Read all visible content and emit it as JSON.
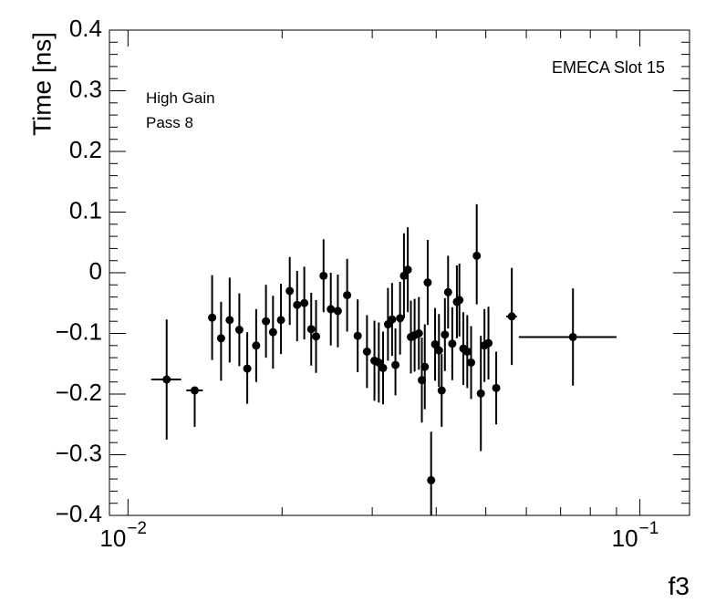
{
  "chart_data": {
    "type": "scatter",
    "title": "",
    "xlabel": "f3",
    "ylabel": "Time [ns]",
    "xscale": "log",
    "xlim": [
      0.0092,
      0.125
    ],
    "ylim": [
      -0.4,
      0.4
    ],
    "grid": false,
    "legend": "none",
    "annotations": {
      "top_right": "EMECA Slot 15",
      "line1": "High Gain",
      "line2": "Pass 8"
    },
    "yticks": [
      {
        "value": 0.4,
        "label": "0.4"
      },
      {
        "value": 0.3,
        "label": "0.3"
      },
      {
        "value": 0.2,
        "label": "0.2"
      },
      {
        "value": 0.1,
        "label": "0.1"
      },
      {
        "value": 0,
        "label": "0"
      },
      {
        "value": -0.1,
        "label": "−0.1"
      },
      {
        "value": -0.2,
        "label": "−0.2"
      },
      {
        "value": -0.3,
        "label": "−0.3"
      },
      {
        "value": -0.4,
        "label": "−0.4"
      }
    ],
    "xticks": [
      {
        "value": 0.01,
        "base": "10",
        "exp": "−2"
      },
      {
        "value": 0.1,
        "base": "10",
        "exp": "−1"
      }
    ],
    "marker_color": "#000000",
    "points": [
      {
        "x": 0.0119,
        "xlo": 0.0111,
        "xhi": 0.0127,
        "y": -0.176,
        "ylo": -0.275,
        "yhi": -0.077
      },
      {
        "x": 0.0135,
        "xlo": 0.013,
        "xhi": 0.014,
        "y": -0.194,
        "ylo": -0.254,
        "yhi": -0.194
      },
      {
        "x": 0.0146,
        "y": -0.074,
        "ylo": -0.144,
        "yhi": -0.004
      },
      {
        "x": 0.0152,
        "y": -0.108,
        "ylo": -0.178,
        "yhi": -0.048
      },
      {
        "x": 0.0158,
        "y": -0.078,
        "ylo": -0.148,
        "yhi": -0.008
      },
      {
        "x": 0.0165,
        "y": -0.094,
        "ylo": -0.154,
        "yhi": -0.034
      },
      {
        "x": 0.0171,
        "y": -0.158,
        "ylo": -0.216,
        "yhi": -0.098
      },
      {
        "x": 0.0178,
        "y": -0.12,
        "ylo": -0.18,
        "yhi": -0.06
      },
      {
        "x": 0.0186,
        "y": -0.08,
        "ylo": -0.14,
        "yhi": -0.02
      },
      {
        "x": 0.0192,
        "y": -0.098,
        "ylo": -0.158,
        "yhi": -0.038
      },
      {
        "x": 0.0199,
        "y": -0.078,
        "ylo": -0.134,
        "yhi": -0.018
      },
      {
        "x": 0.0207,
        "y": -0.03,
        "ylo": -0.086,
        "yhi": 0.026
      },
      {
        "x": 0.0214,
        "y": -0.053,
        "ylo": -0.113,
        "yhi": 0.003
      },
      {
        "x": 0.0221,
        "y": -0.05,
        "ylo": -0.11,
        "yhi": 0.01
      },
      {
        "x": 0.0228,
        "y": -0.093,
        "ylo": -0.153,
        "yhi": -0.033
      },
      {
        "x": 0.0233,
        "y": -0.105,
        "ylo": -0.165,
        "yhi": -0.045
      },
      {
        "x": 0.0241,
        "y": -0.005,
        "ylo": -0.065,
        "yhi": 0.055
      },
      {
        "x": 0.0249,
        "y": -0.06,
        "ylo": -0.12,
        "yhi": 0.0
      },
      {
        "x": 0.0257,
        "y": -0.063,
        "ylo": -0.123,
        "yhi": -0.003
      },
      {
        "x": 0.0268,
        "y": -0.037,
        "ylo": -0.097,
        "yhi": 0.023
      },
      {
        "x": 0.0281,
        "y": -0.104,
        "ylo": -0.164,
        "yhi": -0.044
      },
      {
        "x": 0.0293,
        "y": -0.13,
        "ylo": -0.19,
        "yhi": -0.07
      },
      {
        "x": 0.0303,
        "y": -0.145,
        "ylo": -0.211,
        "yhi": -0.079
      },
      {
        "x": 0.0309,
        "y": -0.148,
        "ylo": -0.214,
        "yhi": -0.082
      },
      {
        "x": 0.0315,
        "y": -0.157,
        "ylo": -0.217,
        "yhi": -0.097
      },
      {
        "x": 0.0322,
        "y": -0.085,
        "ylo": -0.145,
        "yhi": -0.025
      },
      {
        "x": 0.0328,
        "y": -0.077,
        "ylo": -0.137,
        "yhi": -0.017
      },
      {
        "x": 0.0333,
        "y": -0.152,
        "ylo": -0.202,
        "yhi": -0.092
      },
      {
        "x": 0.034,
        "y": -0.075,
        "ylo": -0.135,
        "yhi": -0.015
      },
      {
        "x": 0.0346,
        "y": -0.005,
        "ylo": -0.075,
        "yhi": 0.065
      },
      {
        "x": 0.0352,
        "y": 0.005,
        "ylo": -0.065,
        "yhi": 0.075
      },
      {
        "x": 0.0357,
        "y": -0.106,
        "ylo": -0.166,
        "yhi": -0.046
      },
      {
        "x": 0.0363,
        "y": -0.103,
        "ylo": -0.163,
        "yhi": -0.043
      },
      {
        "x": 0.037,
        "y": -0.1,
        "ylo": -0.16,
        "yhi": -0.04
      },
      {
        "x": 0.0375,
        "y": -0.177,
        "ylo": -0.247,
        "yhi": -0.107
      },
      {
        "x": 0.038,
        "y": -0.155,
        "ylo": -0.225,
        "yhi": -0.085
      },
      {
        "x": 0.0385,
        "y": -0.016,
        "ylo": -0.086,
        "yhi": 0.054
      },
      {
        "x": 0.0391,
        "y": -0.342,
        "ylo": -0.4,
        "yhi": -0.262
      },
      {
        "x": 0.0398,
        "y": -0.118,
        "ylo": -0.178,
        "yhi": -0.058
      },
      {
        "x": 0.0405,
        "y": -0.128,
        "ylo": -0.188,
        "yhi": -0.068
      },
      {
        "x": 0.041,
        "y": -0.194,
        "ylo": -0.254,
        "yhi": -0.134
      },
      {
        "x": 0.0416,
        "y": -0.102,
        "ylo": -0.162,
        "yhi": -0.042
      },
      {
        "x": 0.0422,
        "y": -0.032,
        "ylo": -0.092,
        "yhi": 0.028
      },
      {
        "x": 0.043,
        "y": -0.117,
        "ylo": -0.177,
        "yhi": -0.057
      },
      {
        "x": 0.0439,
        "y": -0.048,
        "ylo": -0.108,
        "yhi": 0.012
      },
      {
        "x": 0.0444,
        "y": -0.045,
        "ylo": -0.105,
        "yhi": 0.015
      },
      {
        "x": 0.0452,
        "y": -0.125,
        "ylo": -0.185,
        "yhi": -0.065
      },
      {
        "x": 0.046,
        "y": -0.13,
        "ylo": -0.19,
        "yhi": -0.07
      },
      {
        "x": 0.0468,
        "y": -0.148,
        "ylo": -0.208,
        "yhi": -0.088
      },
      {
        "x": 0.048,
        "y": 0.028,
        "ylo": -0.052,
        "yhi": 0.113
      },
      {
        "x": 0.0489,
        "y": -0.199,
        "ylo": -0.294,
        "yhi": -0.104
      },
      {
        "x": 0.0497,
        "y": -0.12,
        "ylo": -0.18,
        "yhi": -0.06
      },
      {
        "x": 0.0506,
        "y": -0.116,
        "ylo": -0.176,
        "yhi": -0.056
      },
      {
        "x": 0.0524,
        "y": -0.19,
        "ylo": -0.25,
        "yhi": -0.13
      },
      {
        "x": 0.0562,
        "xlo": 0.0548,
        "xhi": 0.0575,
        "y": -0.072,
        "ylo": -0.152,
        "yhi": 0.008
      },
      {
        "x": 0.074,
        "xlo": 0.058,
        "xhi": 0.09,
        "y": -0.106,
        "ylo": -0.186,
        "yhi": -0.026
      }
    ]
  }
}
